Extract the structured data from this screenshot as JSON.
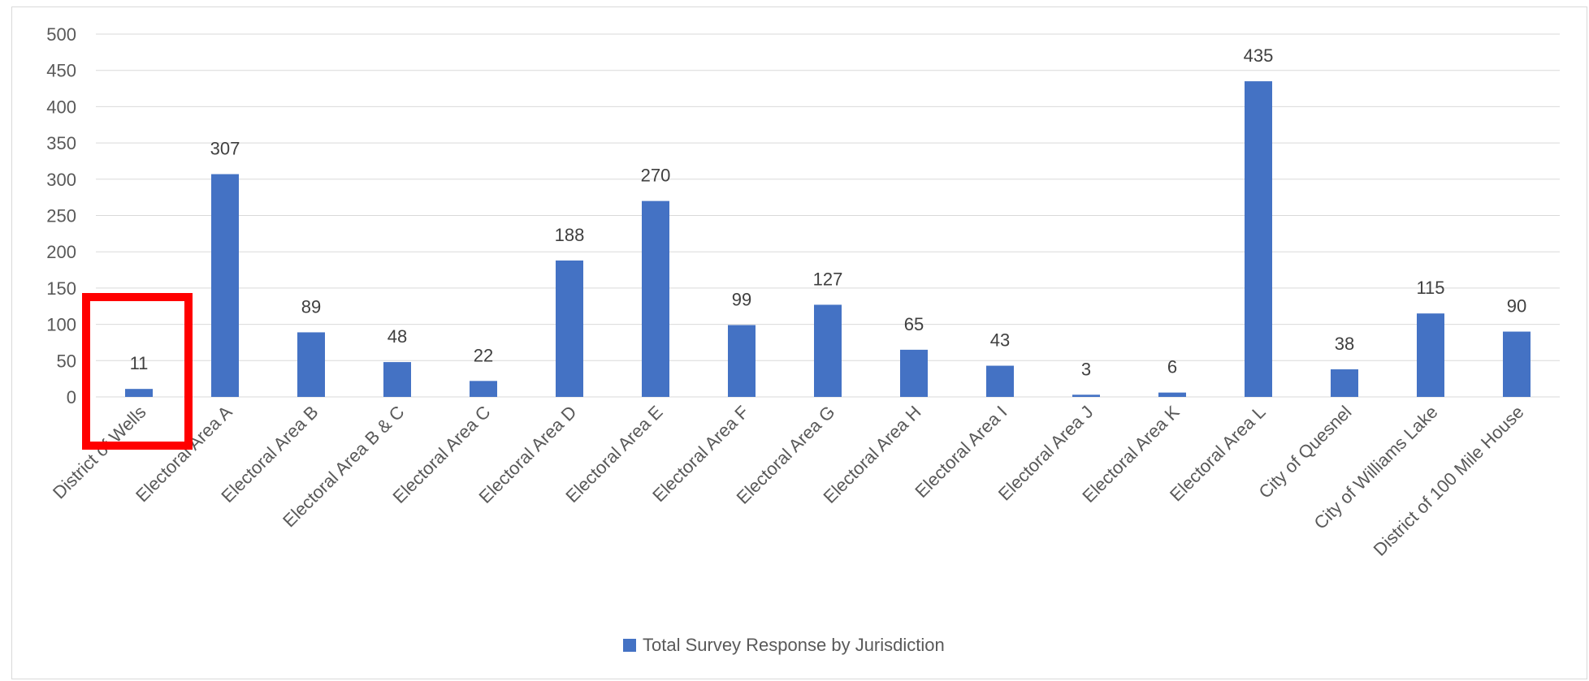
{
  "chart_data": {
    "type": "bar",
    "categories": [
      "District of Wells",
      "Electoral Area A",
      "Electoral Area B",
      "Electoral Area B & C",
      "Electoral Area C",
      "Electoral Area D",
      "Electoral Area E",
      "Electoral Area F",
      "Electoral Area G",
      "Electoral Area H",
      "Electoral Area I",
      "Electoral Area J",
      "Electoral Area K",
      "Electoral Area L",
      "City of Quesnel",
      "City of Williams Lake",
      "District of 100 Mile House"
    ],
    "series": [
      {
        "name": "Total Survey Response by Jurisdiction",
        "values": [
          11,
          307,
          89,
          48,
          22,
          188,
          270,
          99,
          127,
          65,
          43,
          3,
          6,
          435,
          38,
          115,
          90
        ],
        "color": "#4472c4"
      }
    ],
    "y_ticks": [
      "0",
      "50",
      "100",
      "150",
      "200",
      "250",
      "300",
      "350",
      "400",
      "450",
      "500"
    ],
    "ylim": [
      0,
      500
    ],
    "grid": true,
    "legend": "bottom",
    "highlight": {
      "category": "District of Wells",
      "color": "#ff0000"
    }
  }
}
